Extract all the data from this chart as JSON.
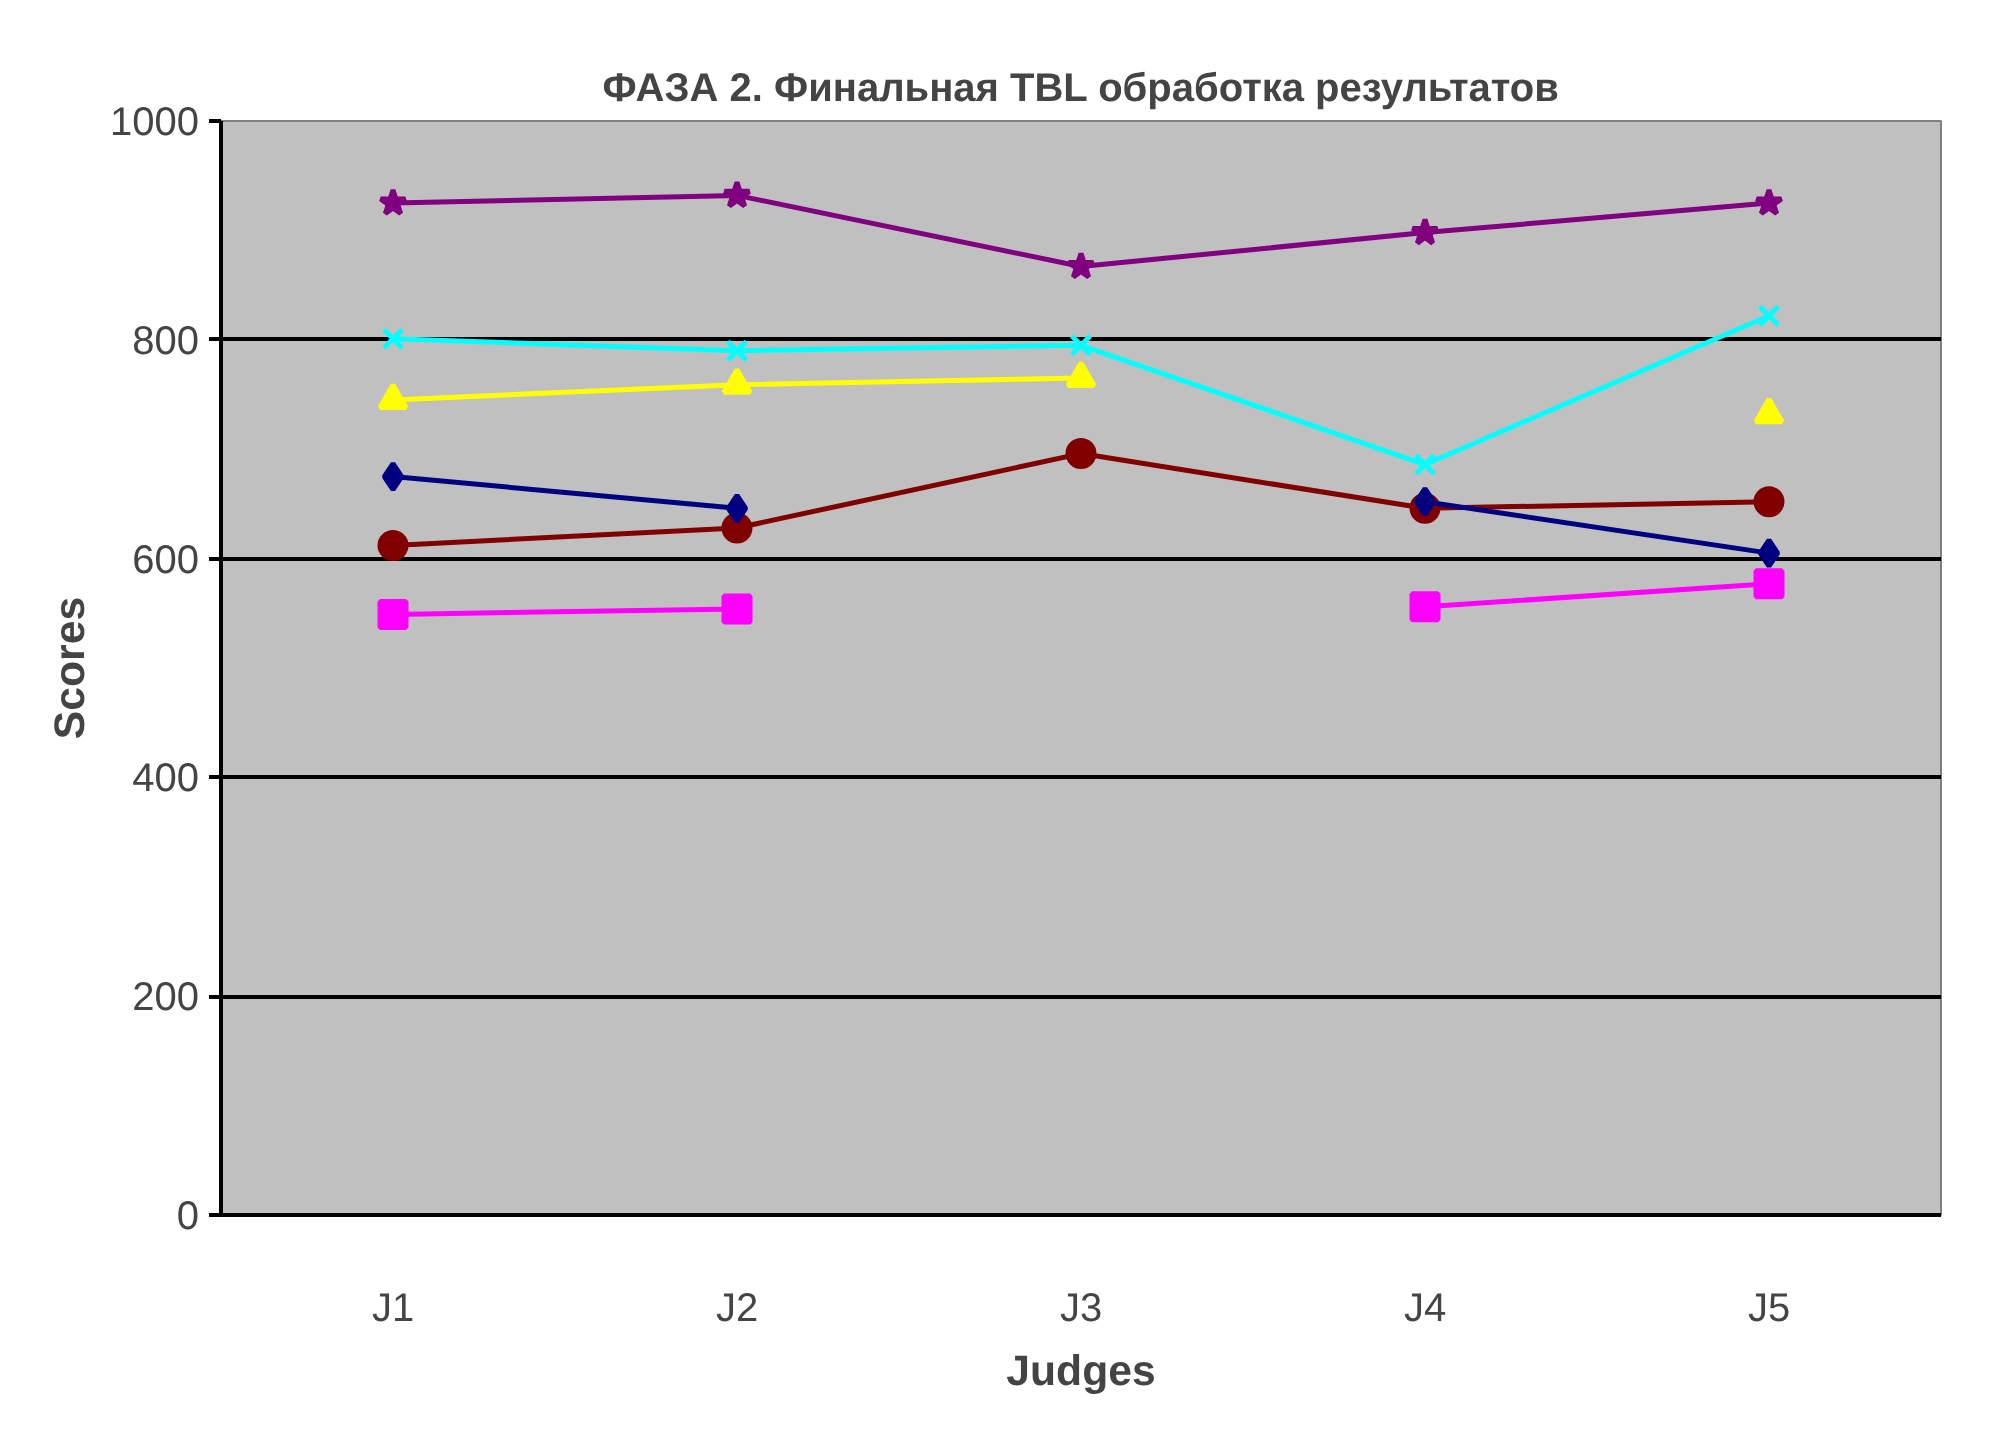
{
  "chart_data": {
    "type": "line",
    "title": "ФАЗА 2. Финальная TBL обработка результатов",
    "xlabel": "Judges",
    "ylabel": "Scores",
    "categories": [
      "J1",
      "J2",
      "J3",
      "J4",
      "J5"
    ],
    "series": [
      {
        "color": "#000080",
        "marker": "diamond",
        "values": [
          675,
          646,
          null,
          652,
          605
        ]
      },
      {
        "color": "#ff00ff",
        "marker": "square",
        "values": [
          549,
          554,
          null,
          556,
          577
        ]
      },
      {
        "color": "#ffff00",
        "marker": "triangle",
        "values": [
          745,
          759,
          765,
          null,
          732
        ]
      },
      {
        "color": "#00ffff",
        "marker": "cross",
        "values": [
          801,
          790,
          795,
          686,
          822
        ]
      },
      {
        "color": "#800080",
        "marker": "star",
        "values": [
          925,
          932,
          867,
          898,
          925
        ]
      },
      {
        "color": "#800000",
        "marker": "circle",
        "values": [
          612,
          628,
          696,
          646,
          652
        ]
      }
    ],
    "ylim": [
      0,
      1000
    ],
    "yticks": [
      0,
      200,
      400,
      600,
      800,
      1000
    ],
    "grid": "y",
    "line_style": "solid"
  }
}
